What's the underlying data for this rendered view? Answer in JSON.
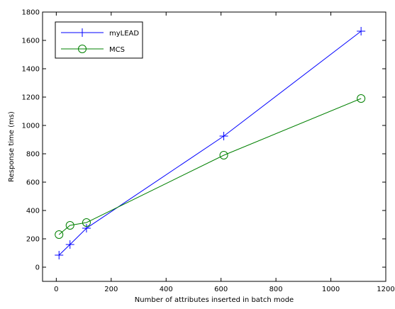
{
  "chart_data": {
    "type": "line",
    "title": "",
    "xlabel": "Number of attributes inserted in batch mode",
    "ylabel": "Response time (ms)",
    "xlim": [
      -50,
      1200
    ],
    "ylim": [
      -100,
      1800
    ],
    "xticks": [
      0,
      200,
      400,
      600,
      800,
      1000,
      1200
    ],
    "yticks": [
      0,
      200,
      400,
      600,
      800,
      1000,
      1200,
      1400,
      1600,
      1800
    ],
    "grid": false,
    "legend": "top-left",
    "series": [
      {
        "name": "myLEAD",
        "color": "#0000ff",
        "marker": "plus",
        "x": [
          10,
          50,
          110,
          610,
          1110
        ],
        "y": [
          85,
          160,
          275,
          925,
          1665
        ]
      },
      {
        "name": "MCS",
        "color": "#008000",
        "marker": "circle",
        "x": [
          10,
          50,
          110,
          610,
          1110
        ],
        "y": [
          230,
          295,
          315,
          790,
          1190
        ]
      }
    ]
  }
}
